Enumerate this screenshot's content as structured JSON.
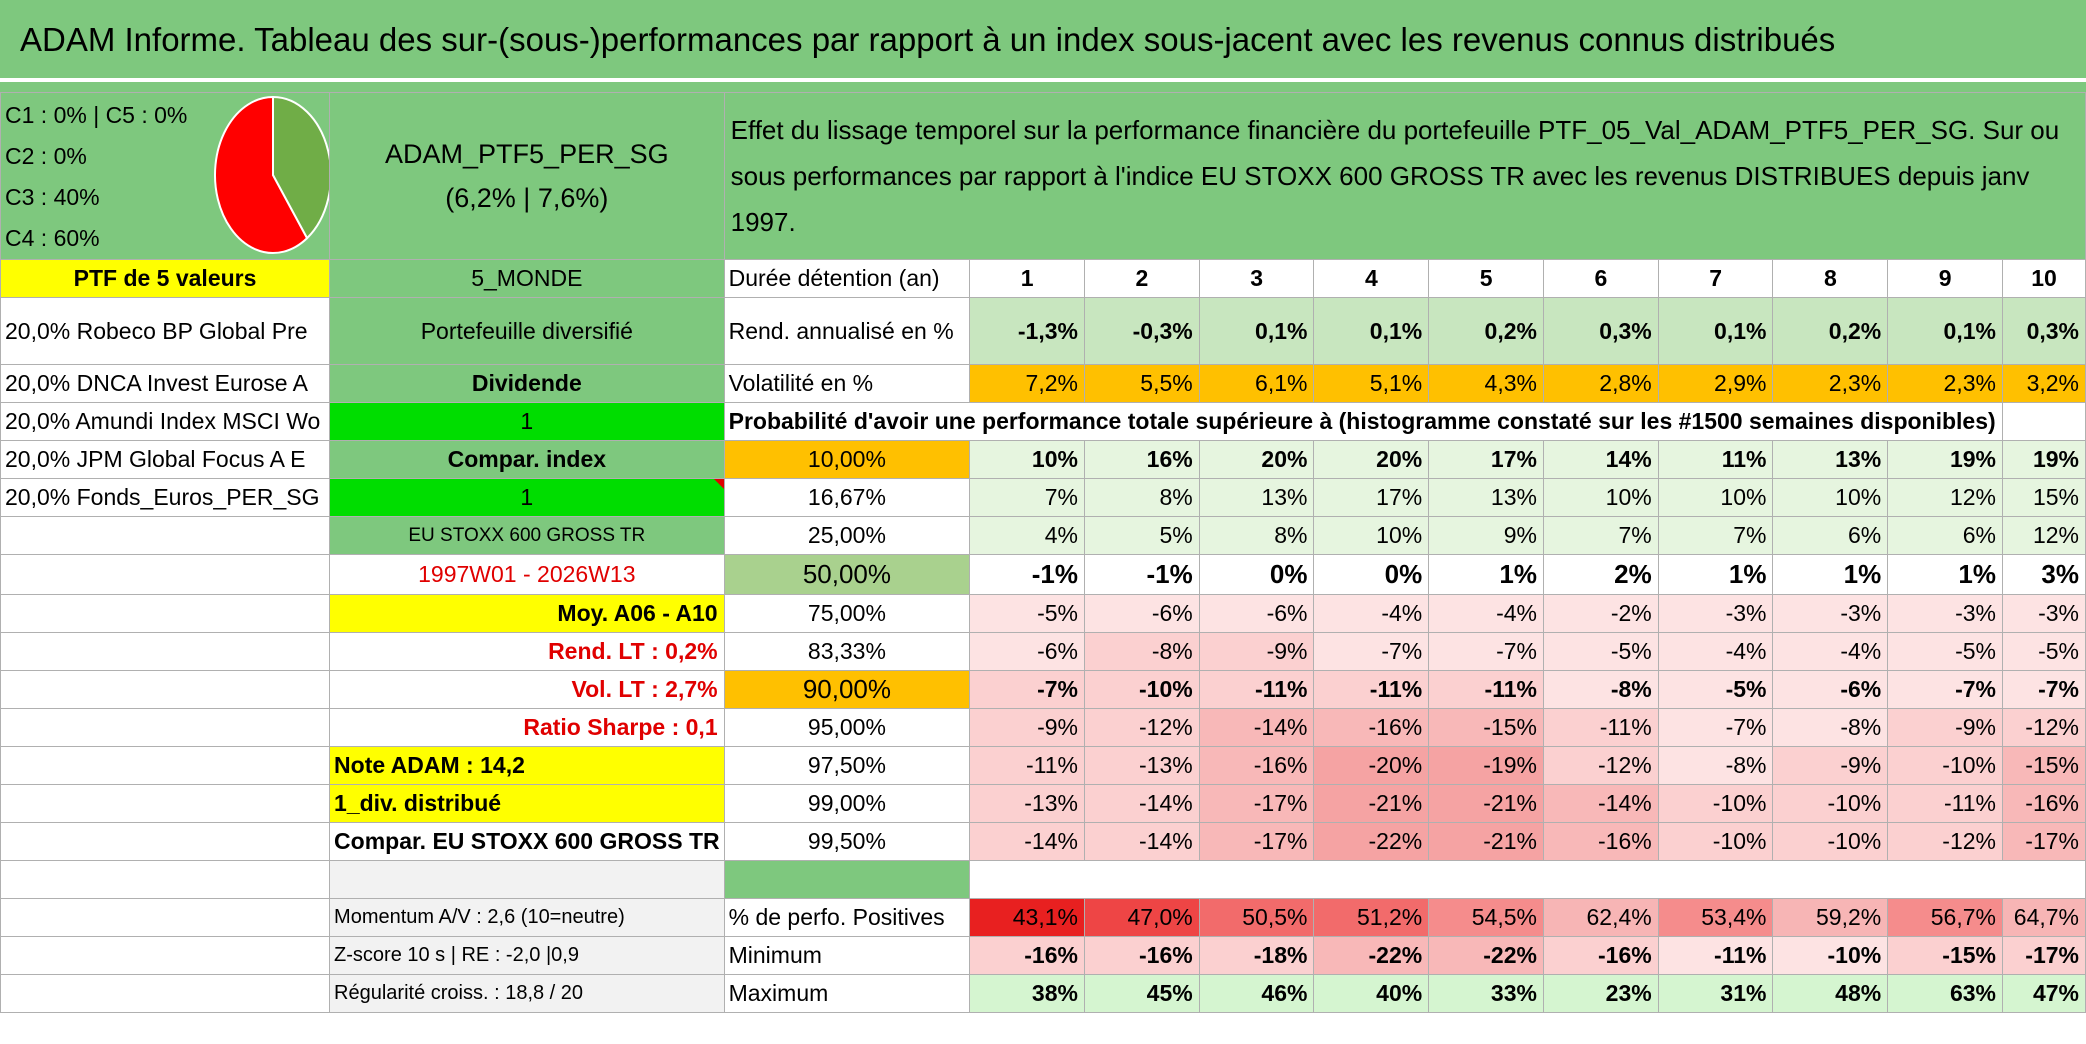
{
  "title": "ADAM Informe. Tableau des sur-(sous-)performances par rapport à un index sous-jacent avec les revenus connus distribués",
  "legend": [
    "C1 : 0% | C5 : 0%",
    "C2 : 0%",
    "C3 : 40%",
    "C4 : 60%"
  ],
  "pie": {
    "c3_fraction": 0.4,
    "c4_fraction": 0.6,
    "c3_color": "#70ad47",
    "c4_color": "#ff0000"
  },
  "portfolio": {
    "name": "ADAM_PTF5_PER_SG",
    "perf": "(6,2% | 7,6%)"
  },
  "description": "Effet du lissage temporel sur la performance financière du portefeuille PTF_05_Val_ADAM_PTF5_PER_SG. Sur ou sous performances par rapport à l'indice EU STOXX 600 GROSS TR avec les revenus DISTRIBUES depuis janv 1997.",
  "left": {
    "ptf_header": "PTF de 5 valeurs",
    "holdings": [
      "20,0% Robeco BP Global Pre",
      "20,0% DNCA Invest Eurose A",
      "20,0% Amundi Index MSCI Wo",
      "20,0% JPM Global Focus A E",
      "20,0% Fonds_Euros_PER_SG"
    ]
  },
  "mid": {
    "zone": "5_MONDE",
    "type": "Portefeuille diversifié",
    "dividende": "Dividende",
    "val1": "1",
    "compar_index": "Compar. index",
    "val2": "1",
    "index": "EU STOXX 600 GROSS TR",
    "period": "1997W01 - 2026W13",
    "moy": "Moy. A06 - A10",
    "rend_lt": "Rend. LT : 0,2%",
    "vol_lt": "Vol. LT : 2,7%",
    "sharpe": "Ratio Sharpe : 0,1",
    "note": "Note ADAM : 14,2",
    "div": "1_div. distribué",
    "compar": "Compar. EU STOXX 600 GROSS TR",
    "momentum": "Momentum A/V : 2,6 (10=neutre)",
    "zscore": "Z-score 10 s | RE : -2,0 |0,9",
    "regularite": "Régularité croiss. : 18,8 / 20"
  },
  "labels": {
    "duree": "Durée détention (an)",
    "rend": "Rend. annualisé en %",
    "vol": "Volatilité en %",
    "proba": "Probabilité d'avoir une performance totale supérieure à (histogramme constaté sur les #1500 semaines disponibles)",
    "pos": "% de perfo. Positives",
    "min": "Minimum",
    "max": "Maximum"
  },
  "years": [
    "1",
    "2",
    "3",
    "4",
    "5",
    "6",
    "7",
    "8",
    "9",
    "10"
  ],
  "rend": [
    "-1,3%",
    "-0,3%",
    "0,1%",
    "0,1%",
    "0,2%",
    "0,3%",
    "0,1%",
    "0,2%",
    "0,1%",
    "0,3%"
  ],
  "vol": [
    "7,2%",
    "5,5%",
    "6,1%",
    "5,1%",
    "4,3%",
    "2,8%",
    "2,9%",
    "2,3%",
    "2,3%",
    "3,2%"
  ],
  "quantiles": [
    {
      "p": "10,00%",
      "v": [
        "10%",
        "16%",
        "20%",
        "20%",
        "17%",
        "14%",
        "11%",
        "13%",
        "19%",
        "19%"
      ]
    },
    {
      "p": "16,67%",
      "v": [
        "7%",
        "8%",
        "13%",
        "17%",
        "13%",
        "10%",
        "10%",
        "10%",
        "12%",
        "15%"
      ]
    },
    {
      "p": "25,00%",
      "v": [
        "4%",
        "5%",
        "8%",
        "10%",
        "9%",
        "7%",
        "7%",
        "6%",
        "6%",
        "12%"
      ]
    },
    {
      "p": "50,00%",
      "v": [
        "-1%",
        "-1%",
        "0%",
        "0%",
        "1%",
        "2%",
        "1%",
        "1%",
        "1%",
        "3%"
      ]
    },
    {
      "p": "75,00%",
      "v": [
        "-5%",
        "-6%",
        "-6%",
        "-4%",
        "-4%",
        "-2%",
        "-3%",
        "-3%",
        "-3%",
        "-3%"
      ]
    },
    {
      "p": "83,33%",
      "v": [
        "-6%",
        "-8%",
        "-9%",
        "-7%",
        "-7%",
        "-5%",
        "-4%",
        "-4%",
        "-5%",
        "-5%"
      ]
    },
    {
      "p": "90,00%",
      "v": [
        "-7%",
        "-10%",
        "-11%",
        "-11%",
        "-11%",
        "-8%",
        "-5%",
        "-6%",
        "-7%",
        "-7%"
      ]
    },
    {
      "p": "95,00%",
      "v": [
        "-9%",
        "-12%",
        "-14%",
        "-16%",
        "-15%",
        "-11%",
        "-7%",
        "-8%",
        "-9%",
        "-12%"
      ]
    },
    {
      "p": "97,50%",
      "v": [
        "-11%",
        "-13%",
        "-16%",
        "-20%",
        "-19%",
        "-12%",
        "-8%",
        "-9%",
        "-10%",
        "-15%"
      ]
    },
    {
      "p": "99,00%",
      "v": [
        "-13%",
        "-14%",
        "-17%",
        "-21%",
        "-21%",
        "-14%",
        "-10%",
        "-10%",
        "-11%",
        "-16%"
      ]
    },
    {
      "p": "99,50%",
      "v": [
        "-14%",
        "-14%",
        "-17%",
        "-22%",
        "-21%",
        "-16%",
        "-10%",
        "-10%",
        "-12%",
        "-17%"
      ]
    }
  ],
  "pos": [
    "43,1%",
    "47,0%",
    "50,5%",
    "51,2%",
    "54,5%",
    "62,4%",
    "53,4%",
    "59,2%",
    "56,7%",
    "64,7%"
  ],
  "min": [
    "-16%",
    "-16%",
    "-18%",
    "-22%",
    "-22%",
    "-16%",
    "-11%",
    "-10%",
    "-15%",
    "-17%"
  ],
  "max": [
    "38%",
    "45%",
    "46%",
    "40%",
    "33%",
    "23%",
    "31%",
    "48%",
    "63%",
    "47%"
  ]
}
